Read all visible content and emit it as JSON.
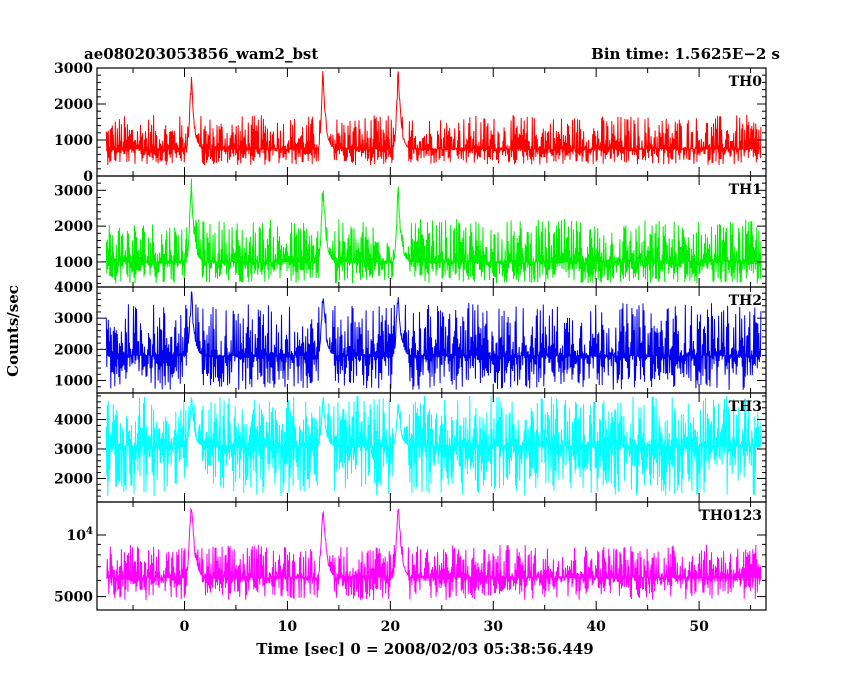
{
  "header": {
    "title": "ae080203053856_wam2_bst",
    "bin_time": "Bin time: 1.5625E−2 s"
  },
  "chart_data": {
    "type": "line",
    "x_label": "Time [sec] 0 = 2008/02/03 05:38:56.449",
    "y_label": "Counts/sec",
    "xlim": [
      -8.5,
      56.5
    ],
    "x_ticks": [
      0,
      10,
      20,
      30,
      40,
      50
    ],
    "x_tick_labels": [
      "0",
      "10",
      "20",
      "30",
      "40",
      "50"
    ],
    "x_data_range": [
      -7.6,
      56.0
    ],
    "peaks_x": [
      0.7,
      13.5,
      20.8
    ],
    "panels": [
      {
        "name": "TH0",
        "color": "#ff0000",
        "scale": "linear",
        "ylim": [
          0,
          3000
        ],
        "y_ticks": [
          0,
          1000,
          2000,
          3000
        ],
        "y_tick_labels": [
          "0",
          "1000",
          "2000",
          "3000"
        ],
        "baseline": 750,
        "noise": [
          300,
          1700
        ],
        "peak_values": [
          2800,
          3100,
          3050
        ]
      },
      {
        "name": "TH1",
        "color": "#00ee00",
        "scale": "linear",
        "ylim": [
          300,
          3400
        ],
        "y_ticks": [
          1000,
          2000,
          3000
        ],
        "y_tick_labels": [
          "1000",
          "2000",
          "3000"
        ],
        "baseline": 1000,
        "noise": [
          400,
          2200
        ],
        "peak_values": [
          3400,
          3400,
          3200
        ]
      },
      {
        "name": "TH2",
        "color": "#0000ee",
        "scale": "linear",
        "ylim": [
          600,
          4000
        ],
        "y_ticks": [
          1000,
          2000,
          3000,
          4000
        ],
        "y_tick_labels": [
          "1000",
          "2000",
          "3000",
          "4000"
        ],
        "baseline": 1800,
        "noise": [
          700,
          3500
        ],
        "peak_values": [
          4000,
          4000,
          4000
        ]
      },
      {
        "name": "TH3",
        "color": "#00ffff",
        "scale": "linear",
        "ylim": [
          1200,
          4900
        ],
        "y_ticks": [
          2000,
          3000,
          4000
        ],
        "y_tick_labels": [
          "2000",
          "3000",
          "4000"
        ],
        "baseline": 3100,
        "noise": [
          1400,
          4800
        ],
        "peak_values": [
          4800,
          4800,
          4700
        ]
      },
      {
        "name": "TH0123",
        "color": "#ff00ff",
        "scale": "log",
        "ylim": [
          4300,
          14500
        ],
        "y_ticks": [
          5000,
          10000
        ],
        "y_tick_labels": [
          "5000",
          "10⁴"
        ],
        "baseline": 6200,
        "noise": [
          4800,
          9000
        ],
        "peak_values": [
          14500,
          14500,
          14500
        ]
      }
    ]
  }
}
